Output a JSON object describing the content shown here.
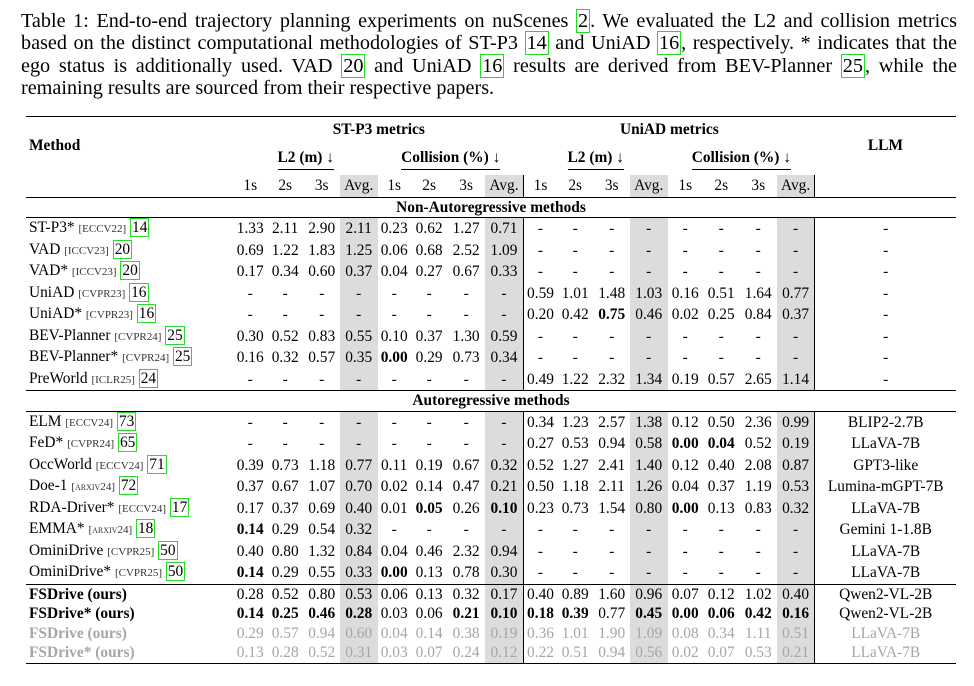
{
  "caption": {
    "line1_a": "Table 1: End-to-end trajectory planning experiments on nuScenes ",
    "line1_ref": "2",
    "line1_b": ". We evaluated the L2 and",
    "line2_a": "collision metrics based on the distinct computational methodologies of ST-P3 ",
    "line2_ref1": "14",
    "line2_b": " and UniAD ",
    "line2_ref2": "16",
    "line2_c": ",",
    "line3_a": "respectively. * indicates that the ego status is additionally used. VAD ",
    "line3_ref1": "20",
    "line3_b": " and UniAD ",
    "line3_ref2": "16",
    "line3_c": " results are",
    "line4_a": "derived from BEV-Planner ",
    "line4_ref": "25",
    "line4_b": ", while the remaining results are sourced from their respective papers."
  },
  "header": {
    "method": "Method",
    "stp3": "ST-P3 metrics",
    "uniad": "UniAD metrics",
    "l2": "L2 (m) ↓",
    "collision": "Collision (%) ↓",
    "llm": "LLM",
    "h1": "1s",
    "h2": "2s",
    "h3": "3s",
    "avg": "Avg."
  },
  "sections": {
    "non_ar": "Non-Autoregressive methods",
    "ar": "Autoregressive methods"
  },
  "rows_non_ar": [
    {
      "name": "ST-P3*",
      "venue": "[ECCV22]",
      "ref": "14",
      "v": [
        "1.33",
        "2.11",
        "2.90",
        "2.11",
        "0.23",
        "0.62",
        "1.27",
        "0.71",
        "-",
        "-",
        "-",
        "-",
        "-",
        "-",
        "-",
        "-"
      ],
      "llm": "-"
    },
    {
      "name": "VAD",
      "venue": "[ICCV23]",
      "ref": "20",
      "v": [
        "0.69",
        "1.22",
        "1.83",
        "1.25",
        "0.06",
        "0.68",
        "2.52",
        "1.09",
        "-",
        "-",
        "-",
        "-",
        "-",
        "-",
        "-",
        "-"
      ],
      "llm": "-"
    },
    {
      "name": "VAD*",
      "venue": "[ICCV23]",
      "ref": "20",
      "v": [
        "0.17",
        "0.34",
        "0.60",
        "0.37",
        "0.04",
        "0.27",
        "0.67",
        "0.33",
        "-",
        "-",
        "-",
        "-",
        "-",
        "-",
        "-",
        "-"
      ],
      "llm": "-"
    },
    {
      "name": "UniAD",
      "venue": "[CVPR23]",
      "ref": "16",
      "v": [
        "-",
        "-",
        "-",
        "-",
        "-",
        "-",
        "-",
        "-",
        "0.59",
        "1.01",
        "1.48",
        "1.03",
        "0.16",
        "0.51",
        "1.64",
        "0.77"
      ],
      "llm": "-"
    },
    {
      "name": "UniAD*",
      "venue": "[CVPR23]",
      "ref": "16",
      "v": [
        "-",
        "-",
        "-",
        "-",
        "-",
        "-",
        "-",
        "-",
        "0.20",
        "0.42",
        "0.75",
        "0.46",
        "0.02",
        "0.25",
        "0.84",
        "0.37"
      ],
      "llm": "-"
    },
    {
      "name": "BEV-Planner",
      "venue": "[CVPR24]",
      "ref": "25",
      "v": [
        "0.30",
        "0.52",
        "0.83",
        "0.55",
        "0.10",
        "0.37",
        "1.30",
        "0.59",
        "-",
        "-",
        "-",
        "-",
        "-",
        "-",
        "-",
        "-"
      ],
      "llm": "-"
    },
    {
      "name": "BEV-Planner*",
      "venue": "[CVPR24]",
      "ref": "25",
      "v": [
        "0.16",
        "0.32",
        "0.57",
        "0.35",
        "0.00",
        "0.29",
        "0.73",
        "0.34",
        "-",
        "-",
        "-",
        "-",
        "-",
        "-",
        "-",
        "-"
      ],
      "llm": "-"
    },
    {
      "name": "PreWorld",
      "venue": "[ICLR25]",
      "ref": "24",
      "v": [
        "-",
        "-",
        "-",
        "-",
        "-",
        "-",
        "-",
        "-",
        "0.49",
        "1.22",
        "2.32",
        "1.34",
        "0.19",
        "0.57",
        "2.65",
        "1.14"
      ],
      "llm": "-"
    }
  ],
  "rows_ar": [
    {
      "name": "ELM",
      "venue": "[ECCV24]",
      "ref": "73",
      "v": [
        "-",
        "-",
        "-",
        "-",
        "-",
        "-",
        "-",
        "-",
        "0.34",
        "1.23",
        "2.57",
        "1.38",
        "0.12",
        "0.50",
        "2.36",
        "0.99"
      ],
      "llm": "BLIP2-2.7B"
    },
    {
      "name": "FeD*",
      "venue": "[CVPR24]",
      "ref": "65",
      "v": [
        "-",
        "-",
        "-",
        "-",
        "-",
        "-",
        "-",
        "-",
        "0.27",
        "0.53",
        "0.94",
        "0.58",
        "0.00",
        "0.04",
        "0.52",
        "0.19"
      ],
      "llm": "LLaVA-7B"
    },
    {
      "name": "OccWorld",
      "venue": "[ECCV24]",
      "ref": "71",
      "v": [
        "0.39",
        "0.73",
        "1.18",
        "0.77",
        "0.11",
        "0.19",
        "0.67",
        "0.32",
        "0.52",
        "1.27",
        "2.41",
        "1.40",
        "0.12",
        "0.40",
        "2.08",
        "0.87"
      ],
      "llm": "GPT3-like"
    },
    {
      "name": "Doe-1",
      "venue": "[arxiv24]",
      "ref": "72",
      "v": [
        "0.37",
        "0.67",
        "1.07",
        "0.70",
        "0.02",
        "0.14",
        "0.47",
        "0.21",
        "0.50",
        "1.18",
        "2.11",
        "1.26",
        "0.04",
        "0.37",
        "1.19",
        "0.53"
      ],
      "llm": "Lumina-mGPT-7B"
    },
    {
      "name": "RDA-Driver*",
      "venue": "[ECCV24]",
      "ref": "17",
      "v": [
        "0.17",
        "0.37",
        "0.69",
        "0.40",
        "0.01",
        "0.05",
        "0.26",
        "0.10",
        "0.23",
        "0.73",
        "1.54",
        "0.80",
        "0.00",
        "0.13",
        "0.83",
        "0.32"
      ],
      "llm": "LLaVA-7B"
    },
    {
      "name": "EMMA*",
      "venue": "[arxiv24]",
      "ref": "18",
      "v": [
        "0.14",
        "0.29",
        "0.54",
        "0.32",
        "-",
        "-",
        "-",
        "-",
        "-",
        "-",
        "-",
        "-",
        "-",
        "-",
        "-",
        "-"
      ],
      "llm": "Gemini 1-1.8B"
    },
    {
      "name": "OminiDrive",
      "venue": "[CVPR25]",
      "ref": "50",
      "v": [
        "0.40",
        "0.80",
        "1.32",
        "0.84",
        "0.04",
        "0.46",
        "2.32",
        "0.94",
        "-",
        "-",
        "-",
        "-",
        "-",
        "-",
        "-",
        "-"
      ],
      "llm": "LLaVA-7B"
    },
    {
      "name": "OminiDrive*",
      "venue": "[CVPR25]",
      "ref": "50",
      "v": [
        "0.14",
        "0.29",
        "0.55",
        "0.33",
        "0.00",
        "0.13",
        "0.78",
        "0.30",
        "-",
        "-",
        "-",
        "-",
        "-",
        "-",
        "-",
        "-"
      ],
      "llm": "LLaVA-7B"
    }
  ],
  "rows_ours": [
    {
      "name": "FSDrive (ours)",
      "v": [
        "0.28",
        "0.52",
        "0.80",
        "0.53",
        "0.06",
        "0.13",
        "0.32",
        "0.17",
        "0.40",
        "0.89",
        "1.60",
        "0.96",
        "0.07",
        "0.12",
        "1.02",
        "0.40"
      ],
      "llm": "Qwen2-VL-2B"
    },
    {
      "name": "FSDrive* (ours)",
      "v": [
        "0.14",
        "0.25",
        "0.46",
        "0.28",
        "0.03",
        "0.06",
        "0.21",
        "0.10",
        "0.18",
        "0.39",
        "0.77",
        "0.45",
        "0.00",
        "0.06",
        "0.42",
        "0.16"
      ],
      "llm": "Qwen2-VL-2B"
    },
    {
      "name": "FSDrive (ours)",
      "v": [
        "0.29",
        "0.57",
        "0.94",
        "0.60",
        "0.04",
        "0.14",
        "0.38",
        "0.19",
        "0.36",
        "1.01",
        "1.90",
        "1.09",
        "0.08",
        "0.34",
        "1.11",
        "0.51"
      ],
      "llm": "LLaVA-7B"
    },
    {
      "name": "FSDrive* (ours)",
      "v": [
        "0.13",
        "0.28",
        "0.52",
        "0.31",
        "0.03",
        "0.07",
        "0.24",
        "0.12",
        "0.22",
        "0.51",
        "0.94",
        "0.56",
        "0.02",
        "0.07",
        "0.53",
        "0.21"
      ],
      "llm": "LLaVA-7B"
    }
  ],
  "bold_cells": {
    "non_ar": [
      [
        4,
        10
      ],
      [
        6,
        4
      ]
    ],
    "ar": [
      [
        1,
        12
      ],
      [
        1,
        13
      ],
      [
        4,
        5
      ],
      [
        4,
        7
      ],
      [
        4,
        12
      ],
      [
        5,
        0
      ],
      [
        7,
        0
      ],
      [
        7,
        4
      ]
    ],
    "ours": [
      [
        1,
        0
      ],
      [
        1,
        1
      ],
      [
        1,
        2
      ],
      [
        1,
        3
      ],
      [
        1,
        6
      ],
      [
        1,
        7
      ],
      [
        1,
        8
      ],
      [
        1,
        9
      ],
      [
        1,
        11
      ],
      [
        1,
        12
      ],
      [
        1,
        13
      ],
      [
        1,
        14
      ],
      [
        1,
        15
      ]
    ]
  }
}
